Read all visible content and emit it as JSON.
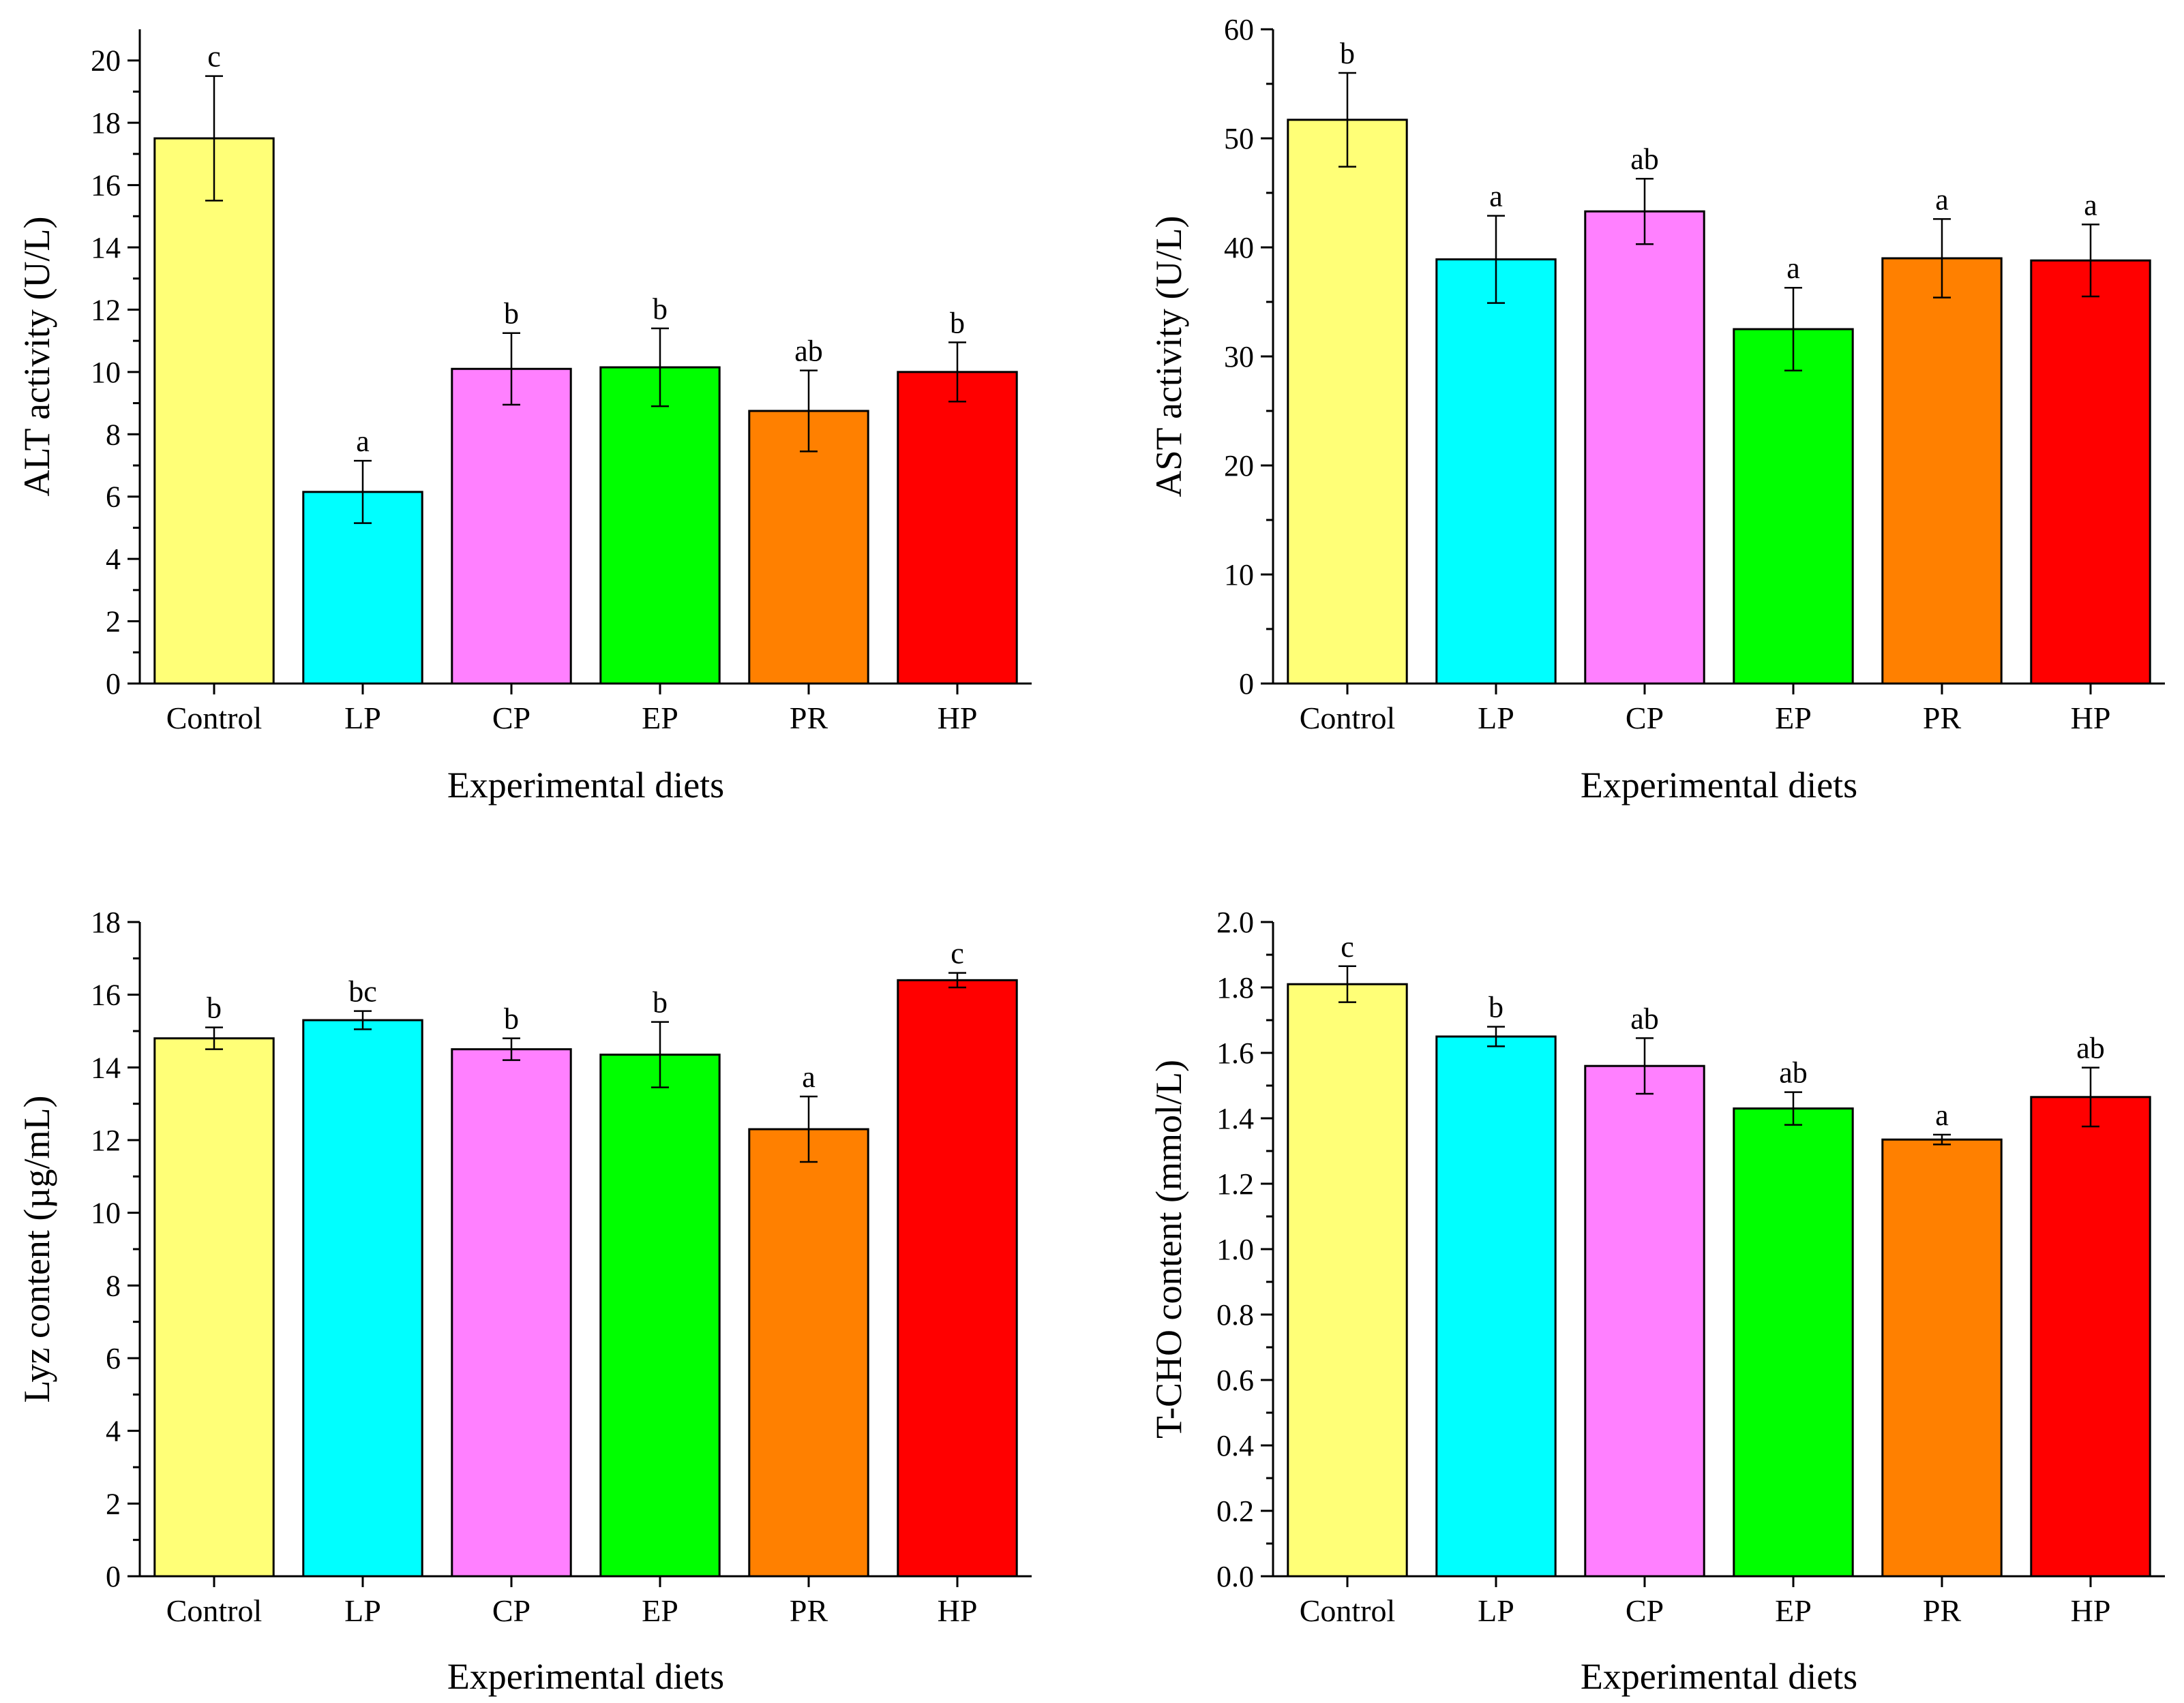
{
  "figure": {
    "colors": [
      "#ffff77",
      "#00ffff",
      "#ff80ff",
      "#00ff00",
      "#ff8000",
      "#ff0000"
    ]
  },
  "chart_data": [
    {
      "type": "bar",
      "panel": "top-left",
      "title": "",
      "categories": [
        "Control",
        "LP",
        "CP",
        "EP",
        "PR",
        "HP"
      ],
      "values": [
        17.5,
        6.15,
        10.1,
        10.15,
        8.75,
        10.0
      ],
      "errors": [
        2.0,
        1.0,
        1.15,
        1.25,
        1.3,
        0.95
      ],
      "significance": [
        "c",
        "a",
        "b",
        "b",
        "ab",
        "b"
      ],
      "xlabel": "Experimental diets",
      "ylabel": "ALT activity (U/L)",
      "ylim": [
        0,
        21
      ],
      "yticks": [
        0,
        2,
        4,
        6,
        8,
        10,
        12,
        14,
        16,
        18,
        20
      ],
      "decimals": 0
    },
    {
      "type": "bar",
      "panel": "top-right",
      "title": "",
      "categories": [
        "Control",
        "LP",
        "CP",
        "EP",
        "PR",
        "HP"
      ],
      "values": [
        51.7,
        38.9,
        43.3,
        32.5,
        39.0,
        38.8
      ],
      "errors": [
        4.3,
        4.0,
        3.0,
        3.8,
        3.6,
        3.3
      ],
      "significance": [
        "b",
        "a",
        "ab",
        "a",
        "a",
        "a"
      ],
      "xlabel": "Experimental diets",
      "ylabel": "AST activity (U/L)",
      "ylim": [
        0,
        60
      ],
      "yticks": [
        0,
        10,
        20,
        30,
        40,
        50,
        60
      ],
      "decimals": 0
    },
    {
      "type": "bar",
      "panel": "bottom-left",
      "title": "",
      "categories": [
        "Control",
        "LP",
        "CP",
        "EP",
        "PR",
        "HP"
      ],
      "values": [
        14.8,
        15.3,
        14.5,
        14.35,
        12.3,
        16.4
      ],
      "errors": [
        0.3,
        0.25,
        0.3,
        0.9,
        0.9,
        0.2
      ],
      "significance": [
        "b",
        "bc",
        "b",
        "b",
        "a",
        "c"
      ],
      "xlabel": "Experimental diets",
      "ylabel": "Lyz content (µg/mL)",
      "ylim": [
        0,
        18
      ],
      "yticks": [
        0,
        2,
        4,
        6,
        8,
        10,
        12,
        14,
        16,
        18
      ],
      "decimals": 0
    },
    {
      "type": "bar",
      "panel": "bottom-right",
      "title": "",
      "categories": [
        "Control",
        "LP",
        "CP",
        "EP",
        "PR",
        "HP"
      ],
      "values": [
        1.81,
        1.65,
        1.56,
        1.43,
        1.335,
        1.465
      ],
      "errors": [
        0.055,
        0.03,
        0.085,
        0.05,
        0.015,
        0.09
      ],
      "significance": [
        "c",
        "b",
        "ab",
        "ab",
        "a",
        "ab"
      ],
      "xlabel": "Experimental diets",
      "ylabel": "T-CHO content (mmol/L)",
      "ylim": [
        0,
        2.0
      ],
      "yticks": [
        0.0,
        0.2,
        0.4,
        0.6,
        0.8,
        1.0,
        1.2,
        1.4,
        1.6,
        1.8,
        2.0
      ],
      "decimals": 1
    }
  ]
}
